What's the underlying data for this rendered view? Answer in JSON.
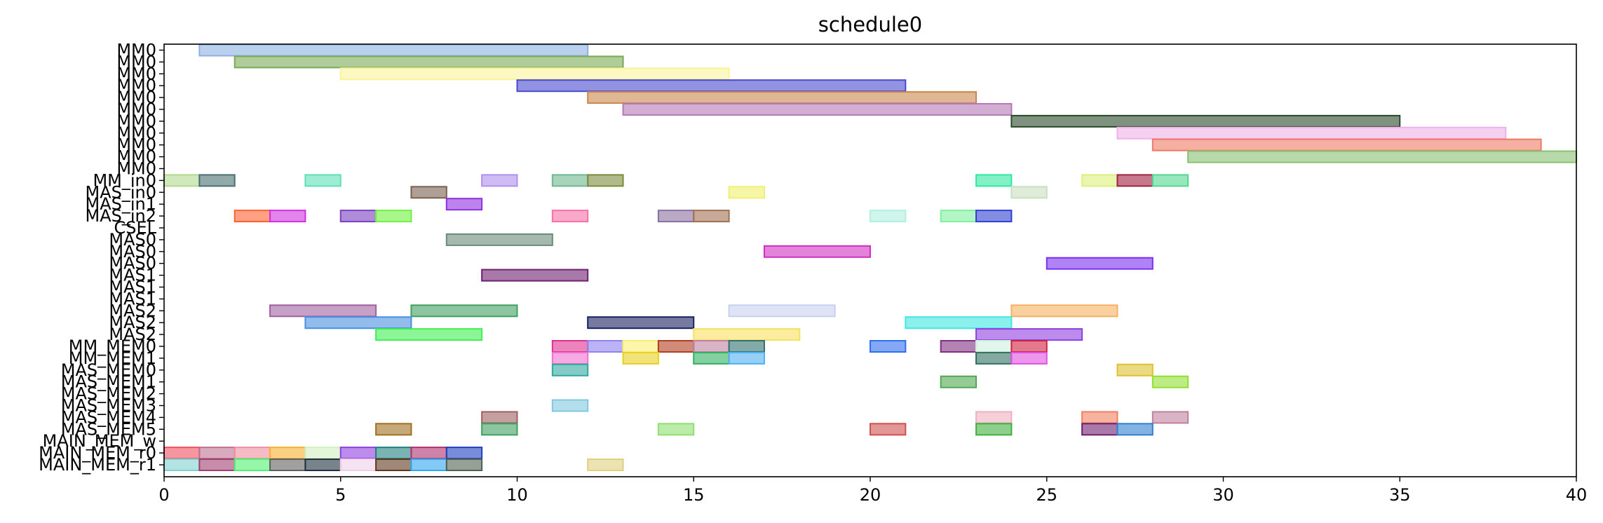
{
  "chart_data": {
    "type": "gantt",
    "title": "schedule0",
    "xlabel": "",
    "ylabel": "",
    "xlim": [
      0,
      40
    ],
    "xticks": [
      0,
      5,
      10,
      15,
      20,
      25,
      30,
      35,
      40
    ],
    "grid": false,
    "rows": [
      "MM0",
      "MM0",
      "MM0",
      "MM0",
      "MM0",
      "MM0",
      "MM0",
      "MM0",
      "MM0",
      "MM0",
      "MM0",
      "MM_in0",
      "MAS_in0",
      "MAS_in1",
      "MAS_in2",
      "CSEL",
      "MAS0",
      "MAS0",
      "MAS0",
      "MAS1",
      "MAS1",
      "MAS1",
      "MAS2",
      "MAS2",
      "MAS2",
      "MM_MEM0",
      "MM_MEM1",
      "MAS_MEM0",
      "MAS_MEM1",
      "MAS_MEM2",
      "MAS_MEM3",
      "MAS_MEM4",
      "MAS_MEM5",
      "MAIN_MEM_w",
      "MAIN_MEM_r0",
      "MAIN_MEM_r1"
    ],
    "tasks": [
      {
        "row": 0,
        "start": 1,
        "end": 12,
        "color": "#8eb0e0"
      },
      {
        "row": 1,
        "start": 2,
        "end": 13,
        "color": "#7aaa55"
      },
      {
        "row": 2,
        "start": 5,
        "end": 16,
        "color": "#f9f39a"
      },
      {
        "row": 3,
        "start": 10,
        "end": 21,
        "color": "#4a4acf"
      },
      {
        "row": 4,
        "start": 12,
        "end": 23,
        "color": "#c9874d"
      },
      {
        "row": 5,
        "start": 13,
        "end": 24,
        "color": "#b578b5"
      },
      {
        "row": 6,
        "start": 24,
        "end": 35,
        "color": "#2a4a2a"
      },
      {
        "row": 7,
        "start": 27,
        "end": 38,
        "color": "#f0b0e8"
      },
      {
        "row": 8,
        "start": 28,
        "end": 39,
        "color": "#ee7a66"
      },
      {
        "row": 9,
        "start": 29,
        "end": 40,
        "color": "#88c070"
      },
      {
        "row": 11,
        "start": 0,
        "end": 1,
        "color": "#b0d890"
      },
      {
        "row": 11,
        "start": 1,
        "end": 2,
        "color": "#4a7070"
      },
      {
        "row": 11,
        "start": 4,
        "end": 5,
        "color": "#5ee0b8"
      },
      {
        "row": 11,
        "start": 9,
        "end": 10,
        "color": "#b090ee"
      },
      {
        "row": 11,
        "start": 11,
        "end": 12,
        "color": "#70b890"
      },
      {
        "row": 11,
        "start": 12,
        "end": 13,
        "color": "#7a8a3a"
      },
      {
        "row": 11,
        "start": 23,
        "end": 24,
        "color": "#30e8a0"
      },
      {
        "row": 11,
        "start": 26,
        "end": 27,
        "color": "#dcf07a"
      },
      {
        "row": 11,
        "start": 27,
        "end": 28,
        "color": "#a02040"
      },
      {
        "row": 11,
        "start": 28,
        "end": 29,
        "color": "#50d890"
      },
      {
        "row": 12,
        "start": 7,
        "end": 8,
        "color": "#7a6050"
      },
      {
        "row": 12,
        "start": 16,
        "end": 17,
        "color": "#f0f070"
      },
      {
        "row": 12,
        "start": 24,
        "end": 25,
        "color": "#c8e0c0"
      },
      {
        "row": 13,
        "start": 8,
        "end": 9,
        "color": "#9030e0"
      },
      {
        "row": 14,
        "start": 2,
        "end": 3,
        "color": "#ff6030"
      },
      {
        "row": 14,
        "start": 3,
        "end": 4,
        "color": "#d030e0"
      },
      {
        "row": 14,
        "start": 5,
        "end": 6,
        "color": "#7a40c0"
      },
      {
        "row": 14,
        "start": 6,
        "end": 7,
        "color": "#70f040"
      },
      {
        "row": 14,
        "start": 11,
        "end": 12,
        "color": "#f870a8"
      },
      {
        "row": 14,
        "start": 14,
        "end": 15,
        "color": "#8a70a0"
      },
      {
        "row": 14,
        "start": 15,
        "end": 16,
        "color": "#a07050"
      },
      {
        "row": 14,
        "start": 20,
        "end": 21,
        "color": "#b0f0e0"
      },
      {
        "row": 14,
        "start": 22,
        "end": 23,
        "color": "#80f0a0"
      },
      {
        "row": 14,
        "start": 23,
        "end": 24,
        "color": "#3040d0"
      },
      {
        "row": 16,
        "start": 8,
        "end": 11,
        "color": "#6a8a7a"
      },
      {
        "row": 17,
        "start": 17,
        "end": 20,
        "color": "#d030c0"
      },
      {
        "row": 18,
        "start": 25,
        "end": 28,
        "color": "#7a30f0"
      },
      {
        "row": 19,
        "start": 9,
        "end": 12,
        "color": "#702070"
      },
      {
        "row": 22,
        "start": 3,
        "end": 6,
        "color": "#a060a0"
      },
      {
        "row": 22,
        "start": 7,
        "end": 10,
        "color": "#40a060"
      },
      {
        "row": 22,
        "start": 16,
        "end": 19,
        "color": "#c8d0f0"
      },
      {
        "row": 22,
        "start": 24,
        "end": 27,
        "color": "#f8b060"
      },
      {
        "row": 23,
        "start": 4,
        "end": 7,
        "color": "#4a90e0"
      },
      {
        "row": 23,
        "start": 12,
        "end": 15,
        "color": "#1a2060"
      },
      {
        "row": 23,
        "start": 21,
        "end": 24,
        "color": "#40e8e0"
      },
      {
        "row": 24,
        "start": 6,
        "end": 9,
        "color": "#40f050"
      },
      {
        "row": 24,
        "start": 15,
        "end": 18,
        "color": "#f8e060"
      },
      {
        "row": 24,
        "start": 23,
        "end": 26,
        "color": "#9040e0"
      },
      {
        "row": 25,
        "start": 11,
        "end": 12,
        "color": "#e03090"
      },
      {
        "row": 25,
        "start": 12,
        "end": 13,
        "color": "#9080f0"
      },
      {
        "row": 25,
        "start": 13,
        "end": 14,
        "color": "#f8f070"
      },
      {
        "row": 25,
        "start": 14,
        "end": 15,
        "color": "#b04020"
      },
      {
        "row": 25,
        "start": 15,
        "end": 16,
        "color": "#c080a0"
      },
      {
        "row": 25,
        "start": 16,
        "end": 17,
        "color": "#307070"
      },
      {
        "row": 25,
        "start": 20,
        "end": 21,
        "color": "#3070f0"
      },
      {
        "row": 25,
        "start": 22,
        "end": 23,
        "color": "#803080"
      },
      {
        "row": 25,
        "start": 23,
        "end": 24,
        "color": "#d0f0e0"
      },
      {
        "row": 25,
        "start": 24,
        "end": 25,
        "color": "#d02040"
      },
      {
        "row": 26,
        "start": 11,
        "end": 12,
        "color": "#f070d0"
      },
      {
        "row": 26,
        "start": 13,
        "end": 14,
        "color": "#e8d020"
      },
      {
        "row": 26,
        "start": 15,
        "end": 16,
        "color": "#30b060"
      },
      {
        "row": 26,
        "start": 16,
        "end": 17,
        "color": "#50b0f0"
      },
      {
        "row": 26,
        "start": 23,
        "end": 24,
        "color": "#307060"
      },
      {
        "row": 26,
        "start": 24,
        "end": 25,
        "color": "#e050e0"
      },
      {
        "row": 27,
        "start": 11,
        "end": 12,
        "color": "#30a8a0"
      },
      {
        "row": 27,
        "start": 27,
        "end": 28,
        "color": "#e0c030"
      },
      {
        "row": 28,
        "start": 22,
        "end": 23,
        "color": "#50a850"
      },
      {
        "row": 28,
        "start": 28,
        "end": 29,
        "color": "#90e030"
      },
      {
        "row": 30,
        "start": 11,
        "end": 12,
        "color": "#80c8e0"
      },
      {
        "row": 31,
        "start": 9,
        "end": 10,
        "color": "#a06060"
      },
      {
        "row": 31,
        "start": 23,
        "end": 24,
        "color": "#f0b0c0"
      },
      {
        "row": 31,
        "start": 26,
        "end": 27,
        "color": "#f08060"
      },
      {
        "row": 31,
        "start": 28,
        "end": 29,
        "color": "#c080a0"
      },
      {
        "row": 32,
        "start": 6,
        "end": 7,
        "color": "#a07020"
      },
      {
        "row": 32,
        "start": 9,
        "end": 10,
        "color": "#40a060"
      },
      {
        "row": 32,
        "start": 14,
        "end": 15,
        "color": "#90e070"
      },
      {
        "row": 32,
        "start": 20,
        "end": 21,
        "color": "#d05050"
      },
      {
        "row": 32,
        "start": 23,
        "end": 24,
        "color": "#40b040"
      },
      {
        "row": 32,
        "start": 26,
        "end": 27,
        "color": "#702070"
      },
      {
        "row": 32,
        "start": 27,
        "end": 28,
        "color": "#3080d0"
      },
      {
        "row": 34,
        "start": 0,
        "end": 1,
        "color": "#f05060"
      },
      {
        "row": 34,
        "start": 1,
        "end": 2,
        "color": "#c07090"
      },
      {
        "row": 34,
        "start": 2,
        "end": 3,
        "color": "#f090a0"
      },
      {
        "row": 34,
        "start": 3,
        "end": 4,
        "color": "#f8b030"
      },
      {
        "row": 34,
        "start": 4,
        "end": 5,
        "color": "#d0f0c0"
      },
      {
        "row": 34,
        "start": 5,
        "end": 6,
        "color": "#9040e0"
      },
      {
        "row": 34,
        "start": 6,
        "end": 7,
        "color": "#208080"
      },
      {
        "row": 34,
        "start": 7,
        "end": 8,
        "color": "#b03070"
      },
      {
        "row": 34,
        "start": 8,
        "end": 9,
        "color": "#2040c0"
      },
      {
        "row": 35,
        "start": 0,
        "end": 1,
        "color": "#80d0d0"
      },
      {
        "row": 35,
        "start": 1,
        "end": 2,
        "color": "#a04070"
      },
      {
        "row": 35,
        "start": 2,
        "end": 3,
        "color": "#50f070"
      },
      {
        "row": 35,
        "start": 3,
        "end": 4,
        "color": "#606060"
      },
      {
        "row": 35,
        "start": 4,
        "end": 5,
        "color": "#203040"
      },
      {
        "row": 35,
        "start": 5,
        "end": 6,
        "color": "#f0d0e8"
      },
      {
        "row": 35,
        "start": 6,
        "end": 7,
        "color": "#603820"
      },
      {
        "row": 35,
        "start": 7,
        "end": 8,
        "color": "#30a8f0"
      },
      {
        "row": 35,
        "start": 8,
        "end": 9,
        "color": "#506050"
      },
      {
        "row": 35,
        "start": 12,
        "end": 13,
        "color": "#e0d080"
      }
    ]
  }
}
